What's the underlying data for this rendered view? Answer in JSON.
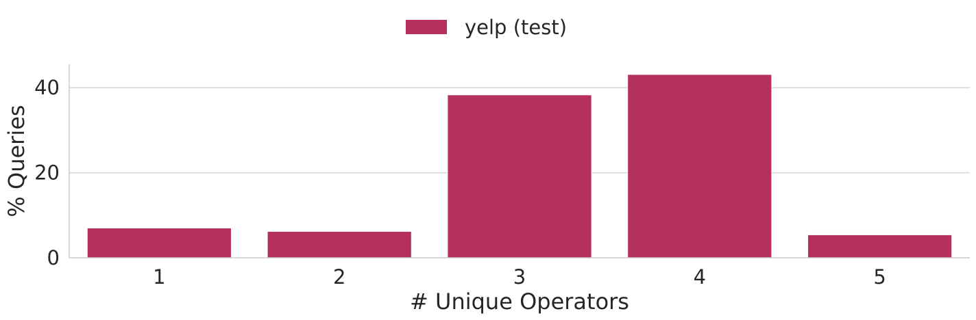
{
  "chart_data": {
    "type": "bar",
    "title": "",
    "xlabel": "# Unique Operators",
    "ylabel": "% Queries",
    "categories": [
      "1",
      "2",
      "3",
      "4",
      "5"
    ],
    "series": [
      {
        "name": "yelp (test)",
        "color": "#b5305a",
        "values": [
          7.0,
          6.2,
          38.3,
          43.1,
          5.4
        ]
      }
    ],
    "ylim": [
      0,
      45.5
    ],
    "yticks": [
      0,
      20,
      40
    ],
    "grid": "horizontal",
    "legend": "top-center",
    "axis_color": "#cccccc",
    "grid_color": "#d5d5d5",
    "text_color": "#262626"
  }
}
